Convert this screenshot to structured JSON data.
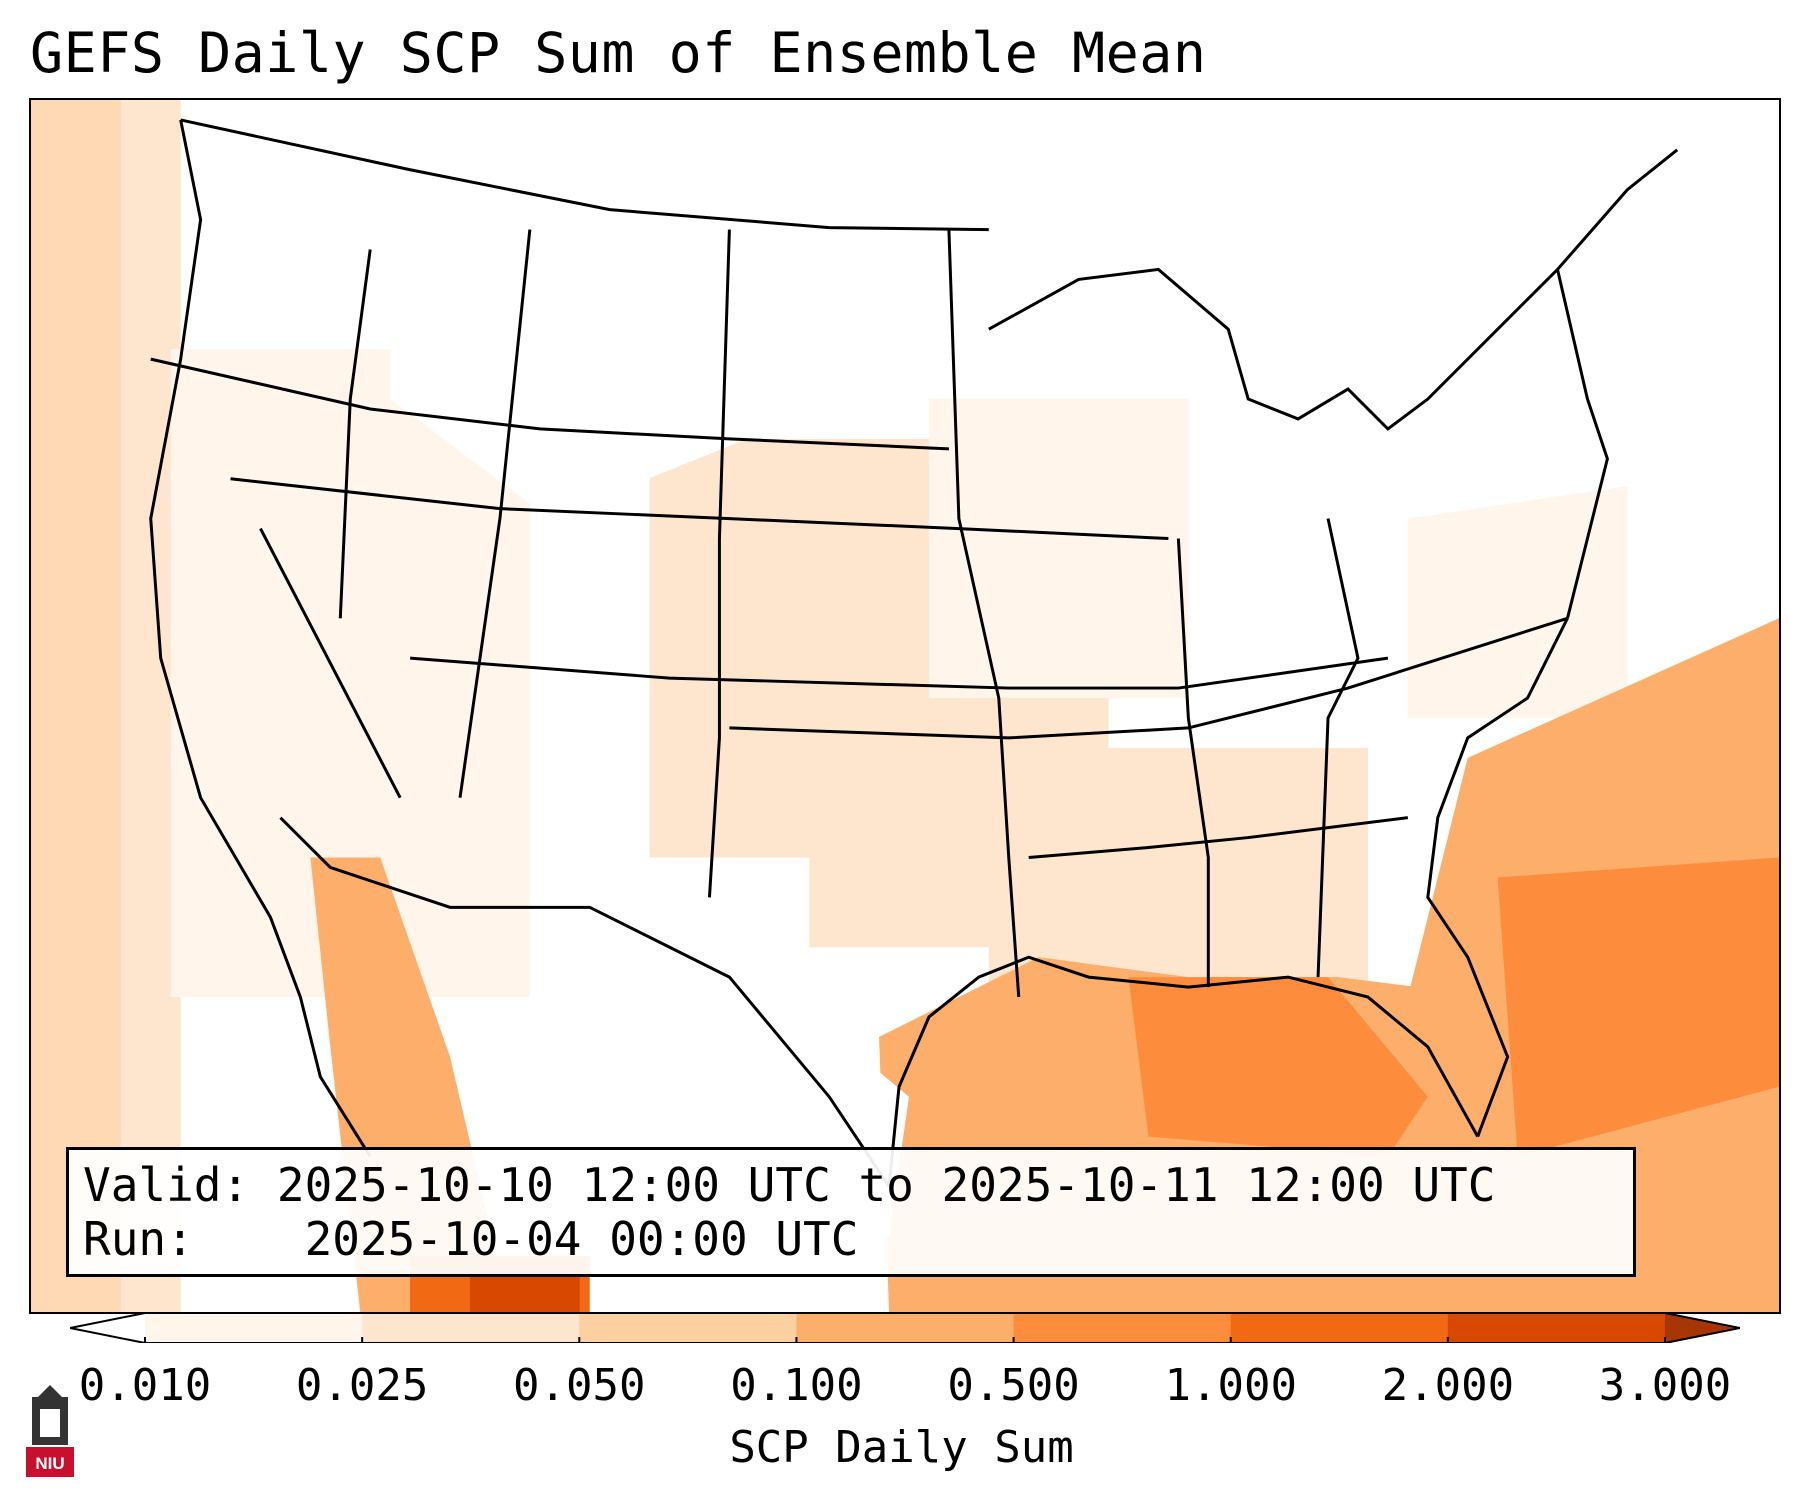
{
  "title": "GEFS Daily SCP Sum of Ensemble Mean",
  "info": {
    "valid_label": "Valid:",
    "valid_value": "2025-10-10 12:00 UTC to 2025-10-11 12:00 UTC",
    "run_label": "Run:",
    "run_value": "2025-10-04 00:00 UTC"
  },
  "colorbar": {
    "label": "SCP Daily Sum",
    "ticks": [
      "0.010",
      "0.025",
      "0.050",
      "0.100",
      "0.500",
      "1.000",
      "2.000",
      "3.000"
    ],
    "colors": [
      "#fff5eb",
      "#fee6ce",
      "#fdd0a2",
      "#fdae6b",
      "#fd8d3c",
      "#f16913",
      "#d94801",
      "#a63603"
    ],
    "extend": "both"
  },
  "logo": {
    "text": "NIU",
    "color": "#c8102e"
  },
  "map": {
    "region": "Contiguous United States",
    "field": "SCP daily sum, ensemble mean",
    "shading_palette": "Oranges",
    "notable_maxima": [
      "Gulf of Mexico",
      "Western Atlantic off Southeast coast",
      "Gulf of California / NW Mexico"
    ]
  }
}
